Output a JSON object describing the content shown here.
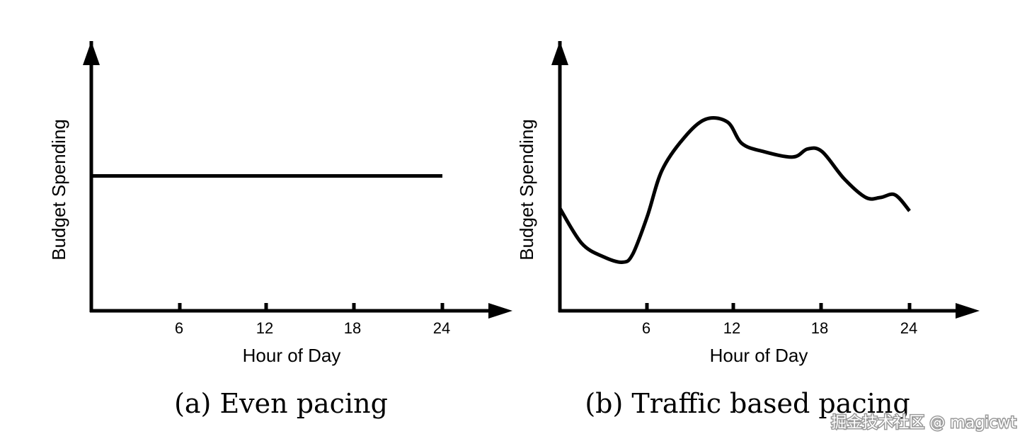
{
  "chart_data": [
    {
      "type": "line",
      "title": "(a) Even pacing",
      "xlabel": "Hour of Day",
      "ylabel": "Budget Spending",
      "xticks": [
        "6",
        "12",
        "18",
        "24"
      ],
      "x": [
        0,
        24
      ],
      "y": [
        0.5,
        0.5
      ],
      "xlim": [
        0,
        28.5
      ],
      "ylim": [
        0,
        1
      ]
    },
    {
      "type": "line",
      "title": "(b) Traffic based pacing",
      "xlabel": "Hour of Day",
      "ylabel": "Budget Spending",
      "xticks": [
        "6",
        "12",
        "18",
        "24"
      ],
      "x": [
        0,
        1.5,
        3,
        4.3,
        5,
        6,
        7,
        8.5,
        10,
        11.5,
        12.5,
        14,
        16,
        17,
        18,
        19.5,
        21,
        22,
        23,
        24
      ],
      "y": [
        0.38,
        0.25,
        0.2,
        0.18,
        0.21,
        0.35,
        0.52,
        0.64,
        0.71,
        0.7,
        0.62,
        0.59,
        0.57,
        0.6,
        0.59,
        0.49,
        0.42,
        0.42,
        0.43,
        0.37
      ],
      "xlim": [
        0,
        28.5
      ],
      "ylim": [
        0,
        1
      ]
    }
  ],
  "watermark": "掘金技术社区 @ magicwt"
}
